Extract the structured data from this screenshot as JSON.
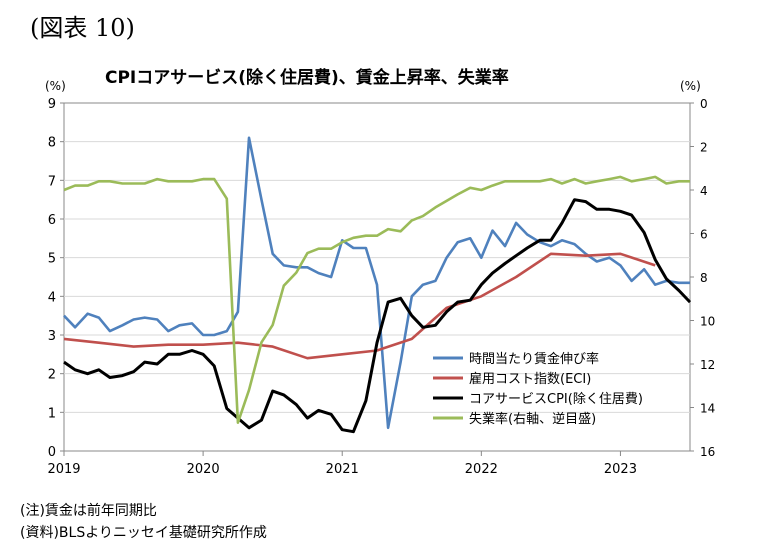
{
  "figure_label": "(図表 10)",
  "notes": {
    "note1": "(注)賃金は前年同期比",
    "note2": "(資料)BLSよりニッセイ基礎研究所作成"
  },
  "chart_data": {
    "type": "line",
    "title": "CPIコアサービス(除く住居費)、賃金上昇率、失業率",
    "left_unit": "(%)",
    "right_unit": "(%)",
    "x_ticks": [
      "2019",
      "2020",
      "2021",
      "2022",
      "2023"
    ],
    "left_ticks": [
      "0",
      "1",
      "2",
      "3",
      "4",
      "5",
      "6",
      "7",
      "8",
      "9"
    ],
    "right_ticks": [
      "0",
      "2",
      "4",
      "6",
      "8",
      "10",
      "12",
      "14",
      "16"
    ],
    "ylim_left": [
      0,
      9
    ],
    "ylim_right_inverted": [
      0,
      16
    ],
    "xlim": [
      2019.0,
      2023.5
    ],
    "legend_position": "bottom-right, inside plot",
    "series": [
      {
        "name": "時間当たり賃金伸び率",
        "axis": "left",
        "color": "#4F81BD",
        "x": [
          2019.0,
          2019.08,
          2019.17,
          2019.25,
          2019.33,
          2019.42,
          2019.5,
          2019.58,
          2019.67,
          2019.75,
          2019.83,
          2019.92,
          2020.0,
          2020.08,
          2020.17,
          2020.25,
          2020.33,
          2020.42,
          2020.5,
          2020.58,
          2020.67,
          2020.75,
          2020.83,
          2020.92,
          2021.0,
          2021.08,
          2021.17,
          2021.25,
          2021.33,
          2021.42,
          2021.5,
          2021.58,
          2021.67,
          2021.75,
          2021.83,
          2021.92,
          2022.0,
          2022.08,
          2022.17,
          2022.25,
          2022.33,
          2022.42,
          2022.5,
          2022.58,
          2022.67,
          2022.75,
          2022.83,
          2022.92,
          2023.0,
          2023.08,
          2023.17,
          2023.25,
          2023.33,
          2023.42,
          2023.5
        ],
        "values": [
          3.5,
          3.2,
          3.55,
          3.45,
          3.1,
          3.25,
          3.4,
          3.45,
          3.4,
          3.1,
          3.25,
          3.3,
          3.0,
          3.0,
          3.1,
          3.6,
          8.1,
          6.5,
          5.1,
          4.8,
          4.75,
          4.75,
          4.6,
          4.5,
          5.45,
          5.25,
          5.25,
          4.3,
          0.6,
          2.3,
          4.0,
          4.3,
          4.4,
          5.0,
          5.4,
          5.5,
          5.0,
          5.7,
          5.3,
          5.9,
          5.6,
          5.4,
          5.3,
          5.45,
          5.35,
          5.1,
          4.9,
          5.0,
          4.8,
          4.4,
          4.7,
          4.3,
          4.4,
          4.35,
          4.35
        ]
      },
      {
        "name": "雇用コスト指数(ECI)",
        "axis": "left",
        "color": "#C0504D",
        "x": [
          2019.0,
          2019.25,
          2019.5,
          2019.75,
          2020.0,
          2020.25,
          2020.5,
          2020.75,
          2021.0,
          2021.25,
          2021.5,
          2021.75,
          2022.0,
          2022.25,
          2022.5,
          2022.75,
          2023.0,
          2023.25
        ],
        "values": [
          2.9,
          2.8,
          2.7,
          2.75,
          2.75,
          2.8,
          2.7,
          2.4,
          2.5,
          2.6,
          2.9,
          3.7,
          4.0,
          4.5,
          5.1,
          5.05,
          5.1,
          4.8
        ]
      },
      {
        "name": "コアサービスCPI(除く住居費)",
        "axis": "left",
        "color": "#000000",
        "x": [
          2019.0,
          2019.08,
          2019.17,
          2019.25,
          2019.33,
          2019.42,
          2019.5,
          2019.58,
          2019.67,
          2019.75,
          2019.83,
          2019.92,
          2020.0,
          2020.08,
          2020.17,
          2020.25,
          2020.33,
          2020.42,
          2020.5,
          2020.58,
          2020.67,
          2020.75,
          2020.83,
          2020.92,
          2021.0,
          2021.08,
          2021.17,
          2021.25,
          2021.33,
          2021.42,
          2021.5,
          2021.58,
          2021.67,
          2021.75,
          2021.83,
          2021.92,
          2022.0,
          2022.08,
          2022.17,
          2022.25,
          2022.33,
          2022.42,
          2022.5,
          2022.58,
          2022.67,
          2022.75,
          2022.83,
          2022.92,
          2023.0,
          2023.08,
          2023.17,
          2023.25,
          2023.33,
          2023.42,
          2023.5
        ],
        "values": [
          2.3,
          2.1,
          2.0,
          2.1,
          1.9,
          1.95,
          2.05,
          2.3,
          2.25,
          2.5,
          2.5,
          2.6,
          2.5,
          2.2,
          1.1,
          0.85,
          0.6,
          0.8,
          1.55,
          1.45,
          1.2,
          0.85,
          1.05,
          0.95,
          0.55,
          0.5,
          1.3,
          2.8,
          3.85,
          3.95,
          3.5,
          3.2,
          3.25,
          3.6,
          3.85,
          3.9,
          4.3,
          4.6,
          4.85,
          5.05,
          5.25,
          5.45,
          5.45,
          5.9,
          6.5,
          6.45,
          6.25,
          6.25,
          6.2,
          6.1,
          5.65,
          4.95,
          4.45,
          4.15,
          3.85
        ]
      },
      {
        "name": "失業率(右軸、逆目盛)",
        "axis": "right",
        "color": "#9BBB59",
        "x": [
          2019.0,
          2019.08,
          2019.17,
          2019.25,
          2019.33,
          2019.42,
          2019.5,
          2019.58,
          2019.67,
          2019.75,
          2019.83,
          2019.92,
          2020.0,
          2020.08,
          2020.17,
          2020.25,
          2020.33,
          2020.42,
          2020.5,
          2020.58,
          2020.67,
          2020.75,
          2020.83,
          2020.92,
          2021.0,
          2021.08,
          2021.17,
          2021.25,
          2021.33,
          2021.42,
          2021.5,
          2021.58,
          2021.67,
          2021.75,
          2021.83,
          2021.92,
          2022.0,
          2022.08,
          2022.17,
          2022.25,
          2022.33,
          2022.42,
          2022.5,
          2022.58,
          2022.67,
          2022.75,
          2022.83,
          2022.92,
          2023.0,
          2023.08,
          2023.17,
          2023.25,
          2023.33,
          2023.42,
          2023.5
        ],
        "values": [
          4.0,
          3.8,
          3.8,
          3.6,
          3.6,
          3.7,
          3.7,
          3.7,
          3.5,
          3.6,
          3.6,
          3.6,
          3.5,
          3.5,
          4.4,
          14.7,
          13.2,
          11.0,
          10.2,
          8.4,
          7.8,
          6.9,
          6.7,
          6.7,
          6.4,
          6.2,
          6.1,
          6.1,
          5.8,
          5.9,
          5.4,
          5.2,
          4.8,
          4.5,
          4.2,
          3.9,
          4.0,
          3.8,
          3.6,
          3.6,
          3.6,
          3.6,
          3.5,
          3.7,
          3.5,
          3.7,
          3.6,
          3.5,
          3.4,
          3.6,
          3.5,
          3.4,
          3.7,
          3.6,
          3.6
        ]
      }
    ]
  }
}
